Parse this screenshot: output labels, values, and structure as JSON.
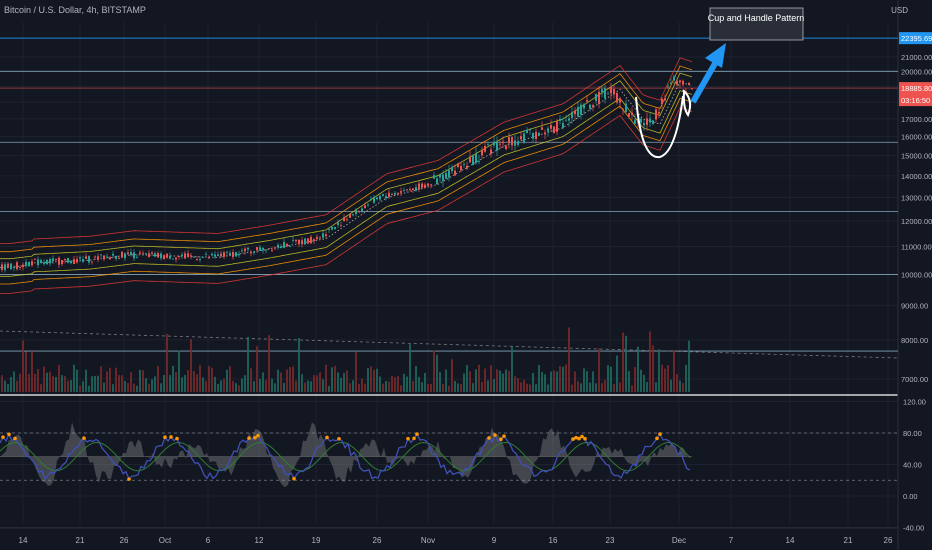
{
  "header": {
    "symbol_title": "Bitcoin / U.S. Dollar, 4h, BITSTAMP",
    "currency": "USD"
  },
  "annotation": {
    "label": "Cup and Handle Pattern"
  },
  "colors": {
    "background": "#131722",
    "grid": "#1e2230",
    "axis_text": "#b2b5be",
    "horizontal_level": "#8fb3c9",
    "target_level": "#2196f3",
    "price_badge": "#ef5350",
    "band_outer": "#e53935",
    "band_mid": "#ff9800",
    "band_inner": "#c6c626",
    "band_center": "#26a69a",
    "cup": "#ffffff",
    "arrow": "#2196f3",
    "osc_fast": "#3f51b5",
    "osc_dots": "#ff9800",
    "osc_area": "#9e9e9e"
  },
  "chart_data": [
    {
      "type": "line",
      "title": "Bitcoin / U.S. Dollar, 4h, BITSTAMP",
      "series_type": "candlestick with envelope bands",
      "y_axis": {
        "ticks": [
          "21000.00",
          "20000.00",
          "19000.00",
          "18000.00",
          "17000.00",
          "16000.00",
          "15000.00",
          "14000.00",
          "13000.00",
          "12000.00",
          "11000.00",
          "10000.00",
          "9000.00",
          "8000.00",
          "7000.00"
        ],
        "ylim": [
          6800,
          23000
        ],
        "scale": "log"
      },
      "x_axis": {
        "ticks": [
          "14",
          "21",
          "26",
          "Oct",
          "6",
          "12",
          "19",
          "26",
          "Nov",
          "9",
          "16",
          "23",
          "Dec",
          "7",
          "14",
          "21",
          "26"
        ]
      },
      "price_badges": {
        "target": "22395.69",
        "last": "18885.80",
        "countdown": "03:16:50"
      },
      "horizontal_levels": [
        22395.69,
        20000,
        18885.8,
        15700,
        12400,
        10000,
        7700
      ],
      "price_path": {
        "x": [
          "14",
          "21",
          "26",
          "Oct",
          "6",
          "12",
          "19",
          "26",
          "Nov",
          "9",
          "16",
          "23",
          "25",
          "27",
          "30",
          "Dec"
        ],
        "close": [
          10400,
          10500,
          10700,
          10650,
          10600,
          10900,
          11300,
          13000,
          13600,
          15500,
          16500,
          18800,
          17000,
          16700,
          19300,
          18885.8
        ]
      },
      "annotations": [
        "Cup and Handle Pattern"
      ]
    },
    {
      "type": "line",
      "title": "",
      "y_axis": {
        "ticks": [
          "120.00",
          "80.00",
          "40.00",
          "0.00",
          "-40.00"
        ],
        "ylim": [
          -40,
          120
        ]
      },
      "reference_lines": [
        80,
        20
      ]
    }
  ]
}
